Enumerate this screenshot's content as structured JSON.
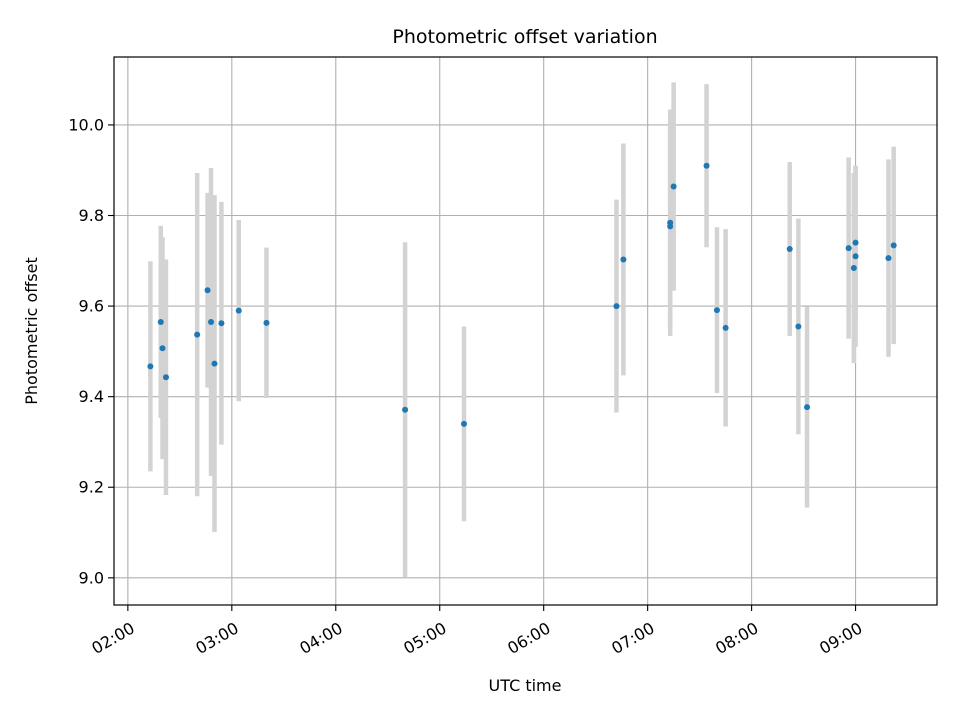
{
  "chart_data": {
    "type": "scatter",
    "title": "Photometric offset variation",
    "xlabel": "UTC time",
    "ylabel": "Photometric offset",
    "x_ticks": [
      "02:00",
      "03:00",
      "04:00",
      "05:00",
      "06:00",
      "07:00",
      "08:00",
      "09:00"
    ],
    "y_ticks": [
      "9.0",
      "9.2",
      "9.4",
      "9.6",
      "9.8",
      "10.0"
    ],
    "xlim": [
      "01:52",
      "09:47"
    ],
    "ylim": [
      8.94,
      10.15
    ],
    "grid": true,
    "colors": {
      "point": "#1f77b4",
      "errorbar": "#d3d3d3",
      "grid": "#b0b0b0"
    },
    "points": [
      {
        "x": "02:13",
        "y": 9.467,
        "err": 0.232
      },
      {
        "x": "02:19",
        "y": 9.565,
        "err": 0.212
      },
      {
        "x": "02:20",
        "y": 9.507,
        "err": 0.245
      },
      {
        "x": "02:22",
        "y": 9.443,
        "err": 0.26
      },
      {
        "x": "02:40",
        "y": 9.537,
        "err": 0.357
      },
      {
        "x": "02:46",
        "y": 9.635,
        "err": 0.215
      },
      {
        "x": "02:48",
        "y": 9.565,
        "err": 0.34
      },
      {
        "x": "02:50",
        "y": 9.473,
        "err": 0.372
      },
      {
        "x": "02:54",
        "y": 9.562,
        "err": 0.268
      },
      {
        "x": "03:04",
        "y": 9.59,
        "err": 0.2
      },
      {
        "x": "03:20",
        "y": 9.563,
        "err": 0.166
      },
      {
        "x": "04:40",
        "y": 9.371,
        "err": 0.37
      },
      {
        "x": "05:14",
        "y": 9.34,
        "err": 0.215
      },
      {
        "x": "06:42",
        "y": 9.6,
        "err": 0.235
      },
      {
        "x": "06:46",
        "y": 9.703,
        "err": 0.256
      },
      {
        "x": "07:13",
        "y": 9.776,
        "err": 0.222
      },
      {
        "x": "07:13",
        "y": 9.784,
        "err": 0.25
      },
      {
        "x": "07:15",
        "y": 9.864,
        "err": 0.23
      },
      {
        "x": "07:34",
        "y": 9.91,
        "err": 0.18
      },
      {
        "x": "07:40",
        "y": 9.591,
        "err": 0.183
      },
      {
        "x": "07:45",
        "y": 9.552,
        "err": 0.218
      },
      {
        "x": "08:22",
        "y": 9.726,
        "err": 0.192
      },
      {
        "x": "08:27",
        "y": 9.555,
        "err": 0.238
      },
      {
        "x": "08:32",
        "y": 9.377,
        "err": 0.222
      },
      {
        "x": "08:56",
        "y": 9.728,
        "err": 0.2
      },
      {
        "x": "08:59",
        "y": 9.684,
        "err": 0.21
      },
      {
        "x": "09:00",
        "y": 9.71,
        "err": 0.2
      },
      {
        "x": "09:00",
        "y": 9.74,
        "err": 0.17
      },
      {
        "x": "09:19",
        "y": 9.706,
        "err": 0.218
      },
      {
        "x": "09:22",
        "y": 9.734,
        "err": 0.218
      }
    ]
  }
}
